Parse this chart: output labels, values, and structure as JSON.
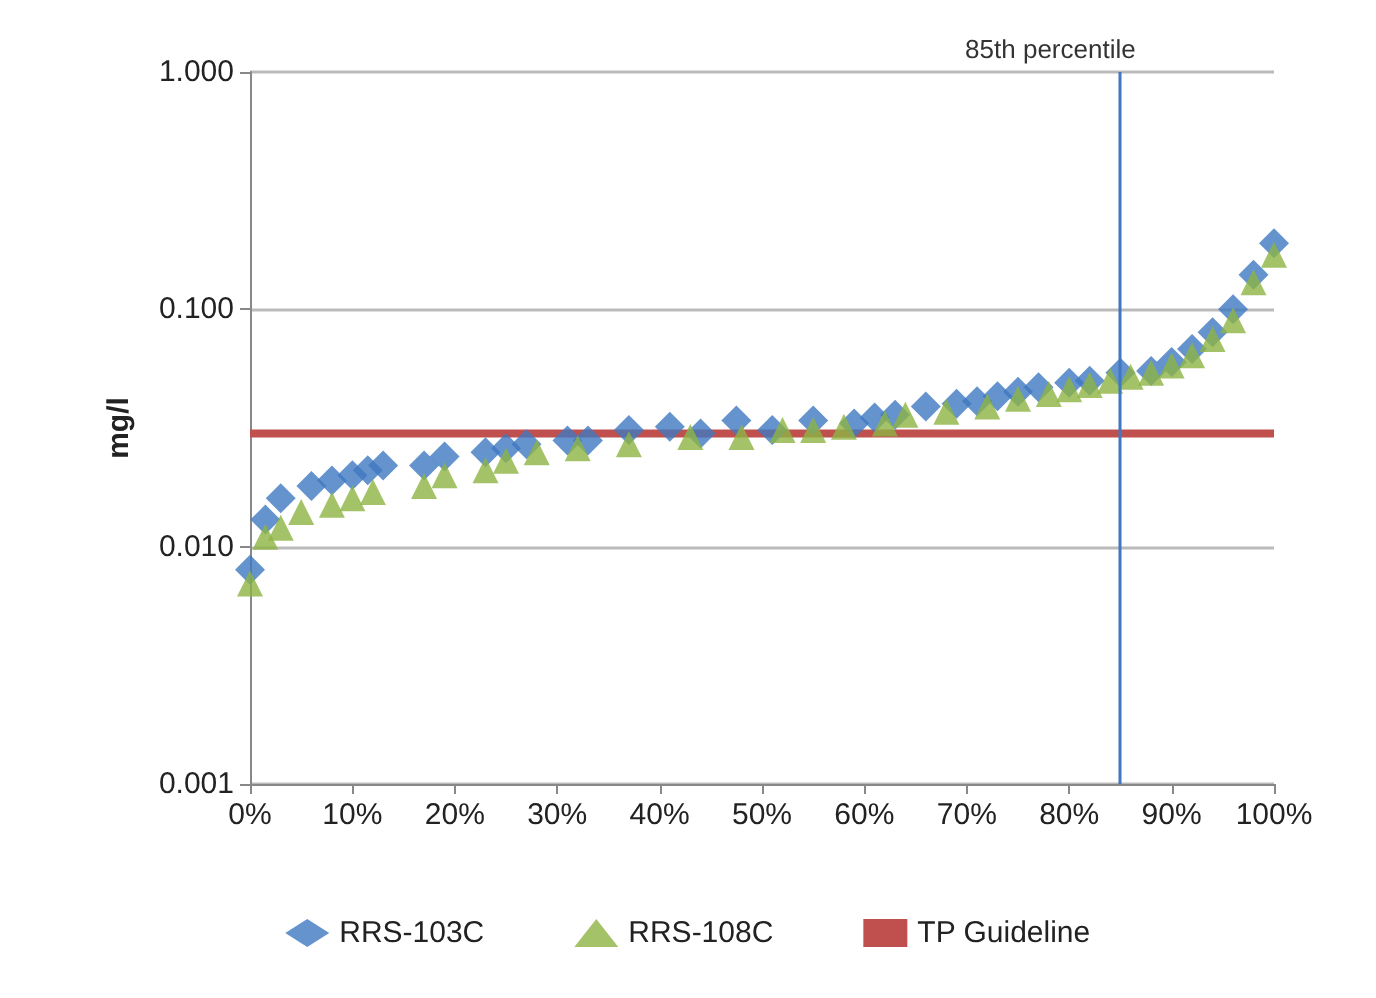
{
  "chart_data": {
    "type": "scatter",
    "ylabel": "mg/l",
    "log": "y",
    "grid": "y",
    "legend": "bottom",
    "xlim": [
      0,
      100
    ],
    "xticks": [
      {
        "value": 0,
        "label": "0%"
      },
      {
        "value": 10,
        "label": "10%"
      },
      {
        "value": 20,
        "label": "20%"
      },
      {
        "value": 30,
        "label": "30%"
      },
      {
        "value": 40,
        "label": "40%"
      },
      {
        "value": 50,
        "label": "50%"
      },
      {
        "value": 60,
        "label": "60%"
      },
      {
        "value": 70,
        "label": "70%"
      },
      {
        "value": 80,
        "label": "80%"
      },
      {
        "value": 90,
        "label": "90%"
      },
      {
        "value": 100,
        "label": "100%"
      }
    ],
    "ylim": [
      0.001,
      1
    ],
    "yticks": [
      {
        "value": 0.001,
        "label": "0.001"
      },
      {
        "value": 0.01,
        "label": "0.010"
      },
      {
        "value": 0.1,
        "label": "0.100"
      },
      {
        "value": 1,
        "label": "1.000"
      }
    ],
    "series": [
      {
        "name": "RRS-103C",
        "color": "#3f78c0",
        "marker": "diamond",
        "x": [
          0,
          1.5,
          3,
          6,
          8,
          10,
          11.5,
          13,
          17,
          19,
          23,
          25,
          27,
          31,
          33,
          37,
          41,
          44,
          47.5,
          51,
          55,
          59,
          61,
          63,
          66,
          69,
          71,
          73,
          75,
          77,
          80,
          82,
          85,
          88,
          90,
          92,
          94,
          96,
          98,
          100
        ],
        "values": [
          0.008,
          0.013,
          0.016,
          0.018,
          0.019,
          0.02,
          0.021,
          0.022,
          0.022,
          0.024,
          0.025,
          0.026,
          0.027,
          0.028,
          0.028,
          0.031,
          0.032,
          0.03,
          0.034,
          0.031,
          0.034,
          0.033,
          0.035,
          0.036,
          0.039,
          0.04,
          0.041,
          0.043,
          0.045,
          0.047,
          0.049,
          0.05,
          0.054,
          0.055,
          0.06,
          0.068,
          0.08,
          0.1,
          0.14,
          0.19
        ]
      },
      {
        "name": "RRS-108C",
        "color": "#8db443",
        "marker": "triangle",
        "x": [
          0,
          1.5,
          3,
          5,
          8,
          10,
          12,
          17,
          19,
          23,
          25,
          28,
          32,
          37,
          43,
          48,
          52,
          55,
          58,
          62,
          64,
          68,
          72,
          75,
          78,
          80,
          82,
          84,
          86,
          88,
          90,
          92,
          94,
          96,
          98,
          100
        ],
        "values": [
          0.007,
          0.011,
          0.012,
          0.014,
          0.015,
          0.016,
          0.017,
          0.018,
          0.02,
          0.021,
          0.023,
          0.025,
          0.026,
          0.027,
          0.029,
          0.029,
          0.031,
          0.031,
          0.032,
          0.033,
          0.036,
          0.037,
          0.039,
          0.042,
          0.044,
          0.046,
          0.048,
          0.05,
          0.052,
          0.054,
          0.058,
          0.064,
          0.075,
          0.09,
          0.13,
          0.17
        ]
      }
    ],
    "ref_lines": [
      {
        "axis": "y",
        "value": 0.03,
        "label": "TP Guideline",
        "color": "#c0504d"
      },
      {
        "axis": "x",
        "value": 85,
        "label": "85th percentile",
        "color": "#3f78c0"
      }
    ]
  }
}
